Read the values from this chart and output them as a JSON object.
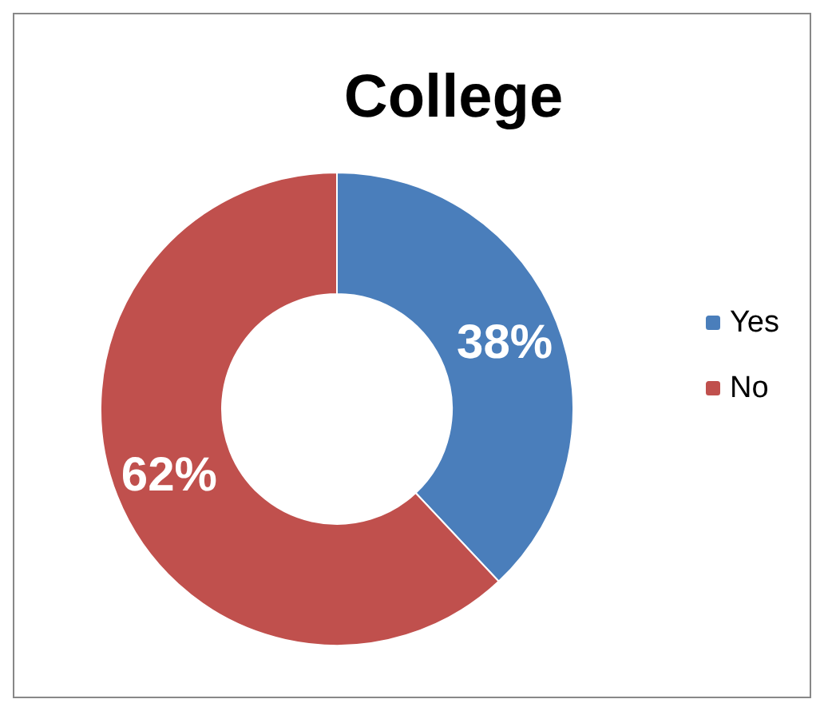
{
  "chart_data": {
    "type": "donut",
    "title": "College",
    "categories": [
      "Yes",
      "No"
    ],
    "values": [
      38,
      62
    ],
    "colors": [
      "#4a7ebb",
      "#c0504d"
    ],
    "value_labels": [
      "38%",
      "62%"
    ],
    "legend": "right"
  }
}
